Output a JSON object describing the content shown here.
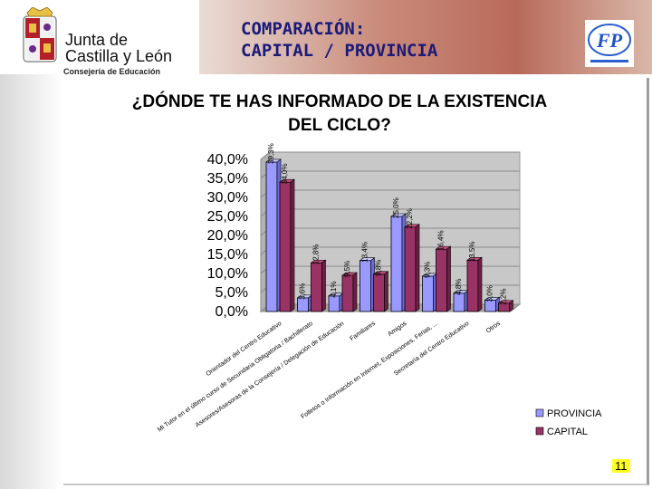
{
  "header": {
    "org_line1": "Junta de",
    "org_line2": "Castilla y León",
    "org_sub": "Consejería de Educación",
    "title": "COMPARACIÓN:\nCAPITAL / PROVINCIA"
  },
  "page_number": "11",
  "colors": {
    "provincia": "#9999ff",
    "capital": "#993366",
    "title": "#1a1a7a"
  },
  "chart_data": {
    "type": "bar",
    "title": "¿DÓNDE TE HAS INFORMADO DE LA EXISTENCIA\nDEL CICLO?",
    "categories": [
      "Orientador del Centro Educativo",
      "Mi Tutor en el último curso de Secundaria Obligatoria / Bachillerato",
      "Asesores/Asesoras de la Consejería / Delegación de Educación",
      "Familiares",
      "Amigos",
      "Folletos o Información en Internet, Exposiciones, Ferias, ...",
      "Secretaría del Centro Educativo",
      "Otros"
    ],
    "series": [
      {
        "name": "PROVINCIA",
        "values": [
          39.3,
          3.6,
          4.1,
          13.4,
          25.0,
          9.3,
          4.8,
          3.0
        ]
      },
      {
        "name": "CAPITAL",
        "values": [
          34.0,
          12.8,
          9.5,
          9.8,
          22.2,
          16.4,
          13.5,
          2.2
        ]
      }
    ],
    "data_labels": {
      "PROVINCIA": [
        "39,3%",
        "3,6%",
        "4,1%",
        "13,4%",
        "25,0%",
        "9,3%",
        "4,8%",
        "3,0%"
      ],
      "CAPITAL": [
        "34,0%",
        "12,8%",
        "9,5%",
        "9,8%",
        "22,2%",
        "16,4%",
        "13,5%",
        "2,2%"
      ]
    },
    "y_ticks": [
      "0,0%",
      "5,0%",
      "10,0%",
      "15,0%",
      "20,0%",
      "25,0%",
      "30,0%",
      "35,0%",
      "40,0%"
    ],
    "ylim": [
      0,
      40
    ],
    "legend_position": "bottom-right",
    "grid": true
  }
}
